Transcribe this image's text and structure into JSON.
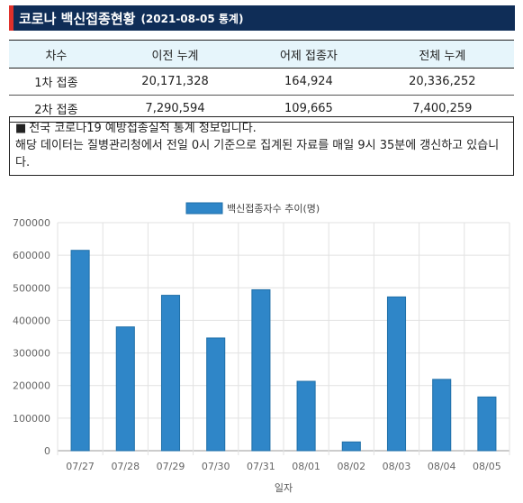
{
  "header": {
    "title": "코로나 백신접종현황",
    "date_label": "(2021-08-05 통계)"
  },
  "table": {
    "columns": [
      "차수",
      "이전 누계",
      "어제 접종자",
      "전체 누계"
    ],
    "rows": [
      [
        "1차 접종",
        "20,171,328",
        "164,924",
        "20,336,252"
      ],
      [
        "2차 접종",
        "7,290,594",
        "109,665",
        "7,400,259"
      ]
    ]
  },
  "notice": {
    "bullet": "■",
    "line1": "전국 코로나19 예방접종실적 통계 정보입니다.",
    "line2": "해당 데이터는 질병관리청에서 전일 0시 기준으로 집계된 자료를 매일 9시 35분에 갱신하고 있습니다."
  },
  "colors": {
    "header_bg": "#0f2d57",
    "header_accent": "#e0312b",
    "bar": "#2f86c8",
    "bar_stroke": "#1f6fa8"
  },
  "chart_data": {
    "type": "bar",
    "categories": [
      "07/27",
      "07/28",
      "07/29",
      "07/30",
      "07/31",
      "08/01",
      "08/02",
      "08/03",
      "08/04",
      "08/05"
    ],
    "series": [
      {
        "name": "백신접종자수 추이(명)",
        "values": [
          615000,
          380000,
          477000,
          346000,
          494000,
          213000,
          27000,
          472000,
          219000,
          164924
        ]
      }
    ],
    "xlabel": "일자",
    "ylabel": "",
    "ylim": [
      0,
      700000
    ],
    "yticks": [
      0,
      100000,
      200000,
      300000,
      400000,
      500000,
      600000,
      700000
    ],
    "grid": true,
    "legend": "top-center"
  }
}
